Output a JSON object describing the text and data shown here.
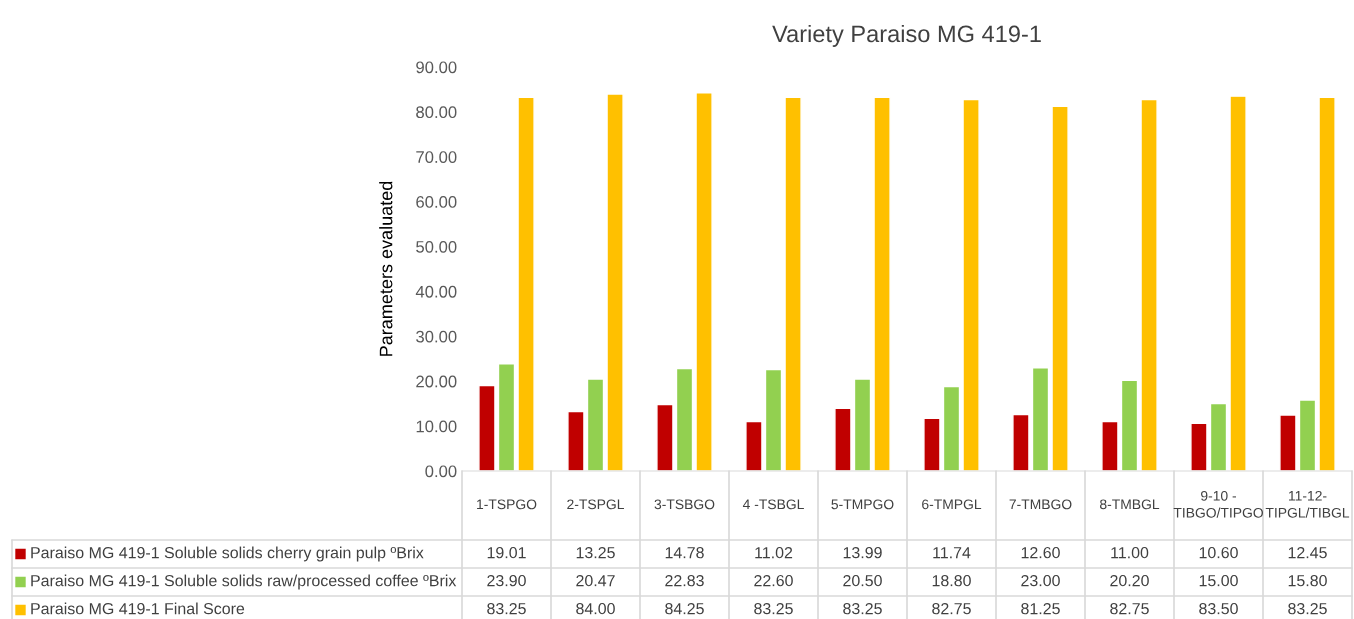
{
  "chart_data": {
    "type": "bar",
    "title": "Variety Paraiso MG 419-1",
    "ylabel": "Parameters evaluated",
    "categories": [
      "1-TSPGO",
      "2-TSPGL",
      "3-TSBGO",
      "4 -TSBGL",
      "5-TMPGO",
      "6-TMPGL",
      "7-TMBGO",
      "8-TMBGL",
      "9-10 - TIBGO/TIPGO",
      "11-12-TIPGL/TIBGL"
    ],
    "series": [
      {
        "name": "Paraiso MG 419-1 Soluble solids cherry grain pulp ºBrix",
        "color": "#c00000",
        "values": [
          19.01,
          13.25,
          14.78,
          11.02,
          13.99,
          11.74,
          12.6,
          11.0,
          10.6,
          12.45
        ],
        "value_labels": [
          "19.01",
          "13.25",
          "14.78",
          "11.02",
          "13.99",
          "11.74",
          "12.60",
          "11.00",
          "10.60",
          "12.45"
        ]
      },
      {
        "name": "Paraiso MG 419-1 Soluble solids raw/processed coffee ºBrix",
        "color": "#92d050",
        "values": [
          23.9,
          20.47,
          22.83,
          22.6,
          20.5,
          18.8,
          23.0,
          20.2,
          15.0,
          15.8
        ],
        "value_labels": [
          "23.90",
          "20.47",
          "22.83",
          "22.60",
          "20.50",
          "18.80",
          "23.00",
          "20.20",
          "15.00",
          "15.80"
        ]
      },
      {
        "name": "Paraiso MG 419-1 Final Score",
        "color": "#ffc000",
        "values": [
          83.25,
          84.0,
          84.25,
          83.25,
          83.25,
          82.75,
          81.25,
          82.75,
          83.5,
          83.25
        ],
        "value_labels": [
          "83.25",
          "84.00",
          "84.25",
          "83.25",
          "83.25",
          "82.75",
          "81.25",
          "82.75",
          "83.50",
          "83.25"
        ]
      }
    ],
    "ylim": [
      0,
      90
    ],
    "yticks": [
      {
        "value": 0,
        "label": "0.00"
      },
      {
        "value": 10,
        "label": "10.00"
      },
      {
        "value": 20,
        "label": "20.00"
      },
      {
        "value": 30,
        "label": "30.00"
      },
      {
        "value": 40,
        "label": "40.00"
      },
      {
        "value": 50,
        "label": "50.00"
      },
      {
        "value": 60,
        "label": "60.00"
      },
      {
        "value": 70,
        "label": "70.00"
      },
      {
        "value": 80,
        "label": "80.00"
      },
      {
        "value": 90,
        "label": "90.00"
      }
    ],
    "grid": false,
    "legend": "bottom"
  }
}
